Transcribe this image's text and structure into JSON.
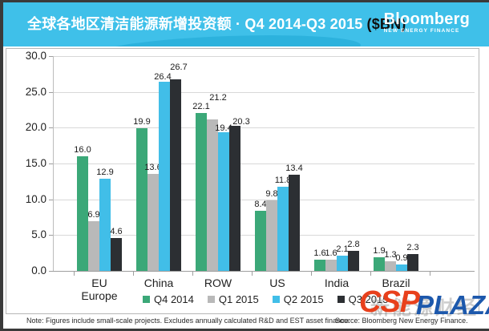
{
  "header": {
    "title_main": "全球各地区清洁能源新增投资额 · Q4 2014-Q3 2015",
    "title_unit": "($BN)",
    "logo_name": "Bloomberg",
    "logo_sub": "NEW ENERGY FINANCE"
  },
  "chart_data": {
    "type": "bar",
    "title": "全球各地区清洁能源新增投资额 · Q4 2014-Q3 2015 ($BN)",
    "categories": [
      "EU Europe",
      "China",
      "ROW",
      "US",
      "India",
      "Brazil"
    ],
    "series": [
      {
        "name": "Q4 2014",
        "color": "#3ba878",
        "values": [
          16.0,
          19.9,
          22.1,
          8.4,
          1.6,
          1.9
        ]
      },
      {
        "name": "Q1 2015",
        "color": "#b9b9b9",
        "values": [
          6.9,
          13.6,
          21.2,
          9.8,
          1.6,
          1.3
        ]
      },
      {
        "name": "Q2 2015",
        "color": "#41bee8",
        "values": [
          12.9,
          26.4,
          19.4,
          11.8,
          2.1,
          0.9
        ]
      },
      {
        "name": "Q3 2015",
        "color": "#2c2f33",
        "values": [
          4.6,
          26.7,
          20.3,
          13.4,
          2.8,
          2.3
        ]
      }
    ],
    "ylim": [
      0,
      30
    ],
    "ytick_step": 5,
    "ytick_labels": [
      "0.0",
      "5.0",
      "10.0",
      "15.0",
      "20.0",
      "25.0",
      "30.0"
    ],
    "grid": true,
    "legend_position": "bottom",
    "value_labels": true
  },
  "footer": {
    "note": "Note: Figures include small-scale projects. Excludes annually calculated R&D and EST asset finance.",
    "source": "Source: Bloomberg New Energy Finance."
  },
  "watermark": {
    "csp": "CSP",
    "plaza": "PLAZA",
    "cn": "新能源财经"
  },
  "colors": {
    "header_bg": "#3fc0e9",
    "bar_green": "#3ba878",
    "bar_gray": "#b9b9b9",
    "bar_blue": "#41bee8",
    "bar_black": "#2c2f33",
    "gridline": "#d8d8d8"
  }
}
